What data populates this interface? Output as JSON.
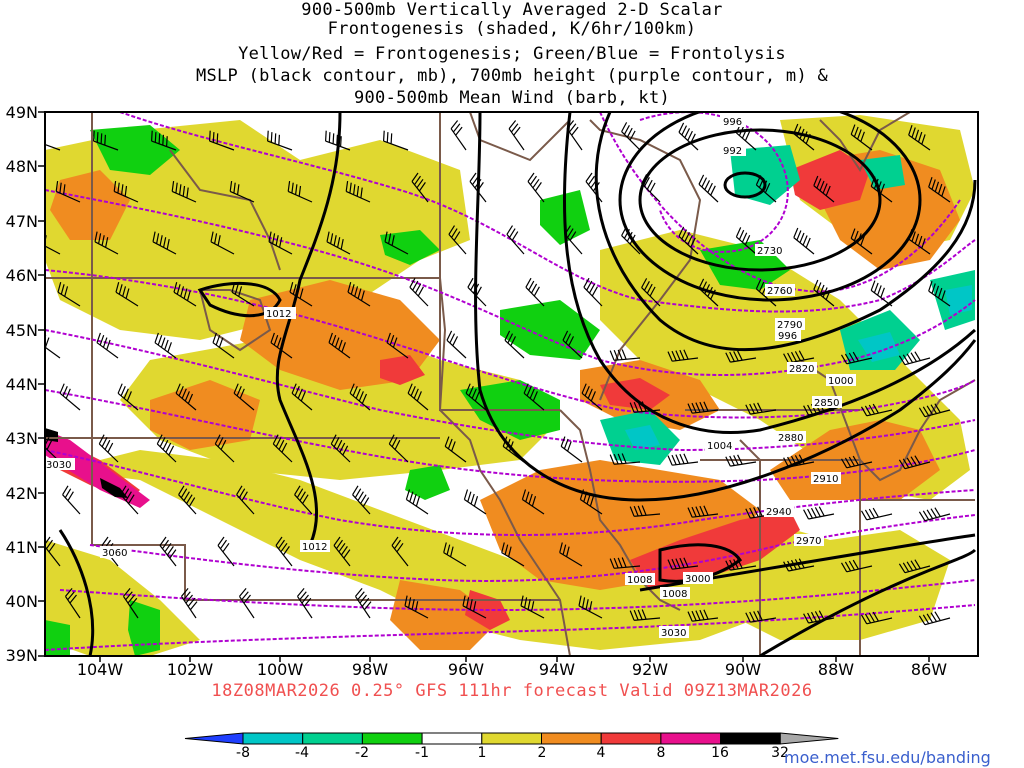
{
  "title_lines": [
    "900-500mb Vertically Averaged 2-D Scalar",
    "Frontogenesis (shaded, K/6hr/100km)",
    "Yellow/Red = Frontogenesis;  Green/Blue = Frontolysis",
    "MSLP (black contour, mb), 700mb height (purple contour, m) &",
    "900-500mb Mean Wind (barb, kt)"
  ],
  "y_ticks": [
    "49N",
    "48N",
    "47N",
    "46N",
    "45N",
    "44N",
    "43N",
    "42N",
    "41N",
    "40N",
    "39N"
  ],
  "x_ticks": [
    "104W",
    "102W",
    "100W",
    "98W",
    "96W",
    "94W",
    "92W",
    "90W",
    "88W",
    "86W"
  ],
  "valid_line": "18Z08MAR2026 0.25° GFS 111hr forecast Valid 09Z13MAR2026",
  "colorbar": {
    "labels": [
      "-8",
      "-4",
      "-2",
      "-1",
      "1",
      "2",
      "4",
      "8",
      "16",
      "32"
    ],
    "colors": [
      "#1f3fff",
      "#00c6c6",
      "#00d090",
      "#10d010",
      "#ffffff",
      "#e0d830",
      "#f08c20",
      "#f03a3a",
      "#e8108c",
      "#000000",
      "#a8a8a8"
    ]
  },
  "mslp_labels": [
    "996",
    "992",
    "1012",
    "996",
    "1000",
    "1004",
    "1008",
    "1008",
    "1012"
  ],
  "height_labels": [
    "2730",
    "2760",
    "2790",
    "2820",
    "2850",
    "2880",
    "2910",
    "2940",
    "2970",
    "3000",
    "3030",
    "3060",
    "3030"
  ],
  "credit": "moe.met.fsu.edu/banding"
}
